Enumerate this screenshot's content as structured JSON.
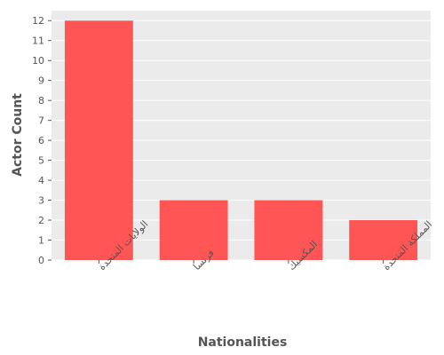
{
  "chart_data": {
    "type": "bar",
    "title": "",
    "xlabel": "Nationalities",
    "ylabel": "Actor Count",
    "categories": [
      "الولايات المتحدة",
      "فرنسا",
      "المكسيك",
      "المملكة المتحدة"
    ],
    "values": [
      12,
      3,
      3,
      2
    ],
    "ylim": [
      0,
      12.5
    ],
    "yticks": [
      0,
      1,
      2,
      3,
      4,
      5,
      6,
      7,
      8,
      9,
      10,
      11,
      12
    ],
    "grid": true,
    "bar_color": "#ff5555",
    "background_color": "#ebebeb",
    "grid_color": "#ffffff",
    "text_color": "#555555"
  }
}
